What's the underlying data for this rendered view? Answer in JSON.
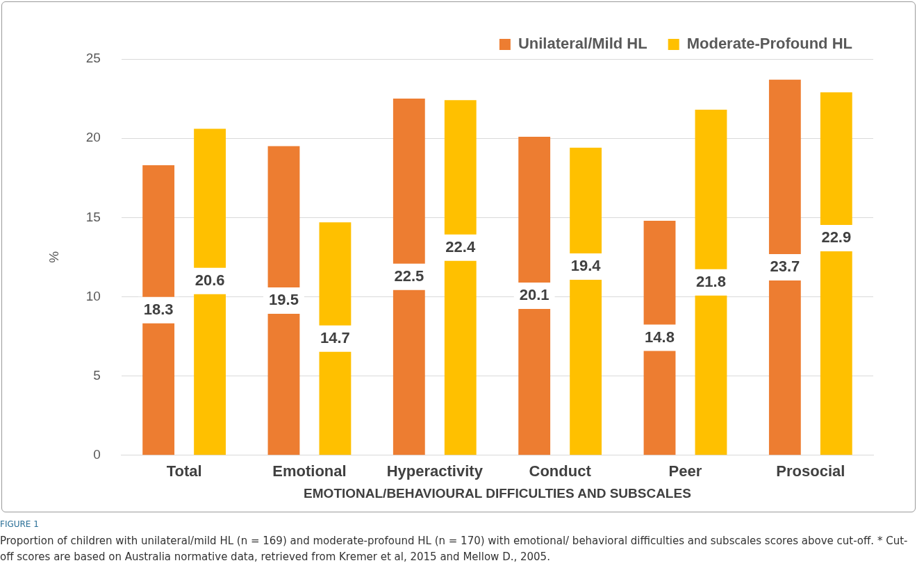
{
  "chart_data": {
    "type": "bar",
    "categories": [
      "Total",
      "Emotional",
      "Hyperactivity",
      "Conduct",
      "Peer",
      "Prosocial"
    ],
    "series": [
      {
        "name": "Unilateral/Mild HL",
        "color": "#ed7d31",
        "values": [
          18.3,
          19.5,
          22.5,
          20.1,
          14.8,
          23.7
        ]
      },
      {
        "name": "Moderate-Profound HL",
        "color": "#ffc000",
        "values": [
          20.6,
          14.7,
          22.4,
          19.4,
          21.8,
          22.9
        ]
      }
    ],
    "xlabel": "EMOTIONAL/BEHAVIOURAL DIFFICULTIES AND SUBSCALES",
    "ylabel": "%",
    "ylim": [
      0,
      25
    ],
    "yticks": [
      0,
      5,
      10,
      15,
      20,
      25
    ],
    "grid": "y",
    "legend": "top right",
    "data_labels": true,
    "annotations": [
      "FIGURE 1",
      "Proportion of children with unilateral/mild HL (n = 169) and moderate-profound HL (n = 170) with emotional/ behavioral difficulties and subscales scores above cut-off. * Cut-off scores are based on Australia normative data, retrieved from Kremer et al, 2015 and Mellow D., 2005."
    ]
  }
}
